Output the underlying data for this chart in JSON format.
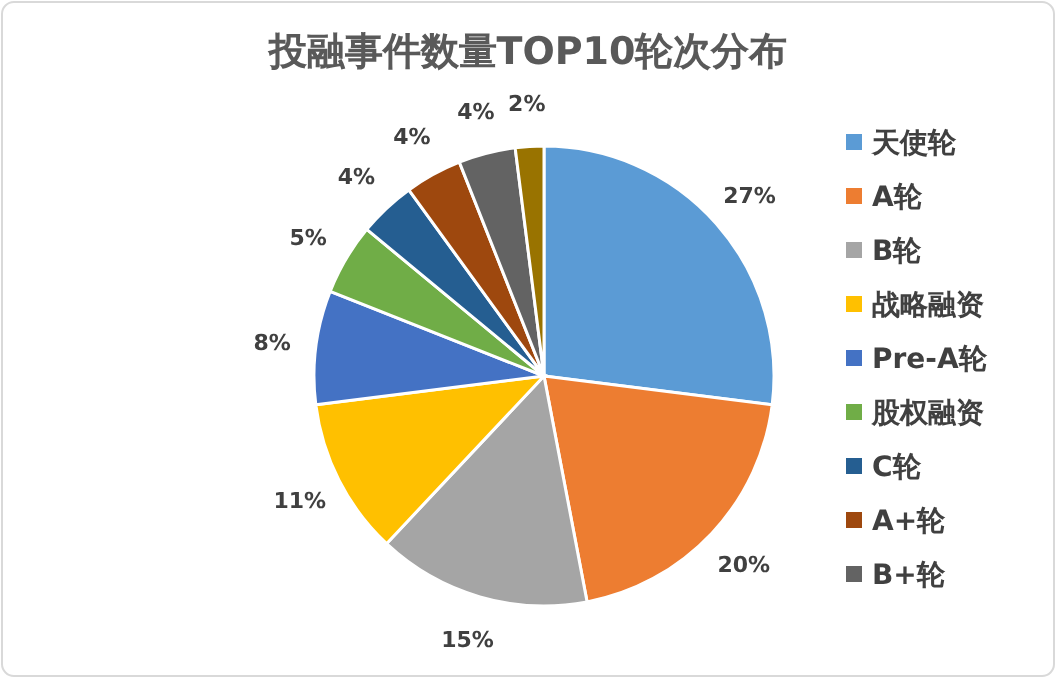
{
  "chart_data": {
    "type": "pie",
    "title": "投融事件数量TOP10轮次分布",
    "categories": [
      "天使轮",
      "A轮",
      "B轮",
      "战略融资",
      "Pre-A轮",
      "股权融资",
      "C轮",
      "A+轮",
      "B+轮",
      null
    ],
    "values": [
      27,
      20,
      15,
      11,
      8,
      5,
      4,
      4,
      4,
      2
    ],
    "value_labels": [
      "27%",
      "20%",
      "15%",
      "11%",
      "8%",
      "5%",
      "4%",
      "4%",
      "4%",
      "2%"
    ],
    "colors": [
      "#5b9bd5",
      "#ed7d31",
      "#a5a5a5",
      "#ffc000",
      "#4472c4",
      "#70ad47",
      "#255e91",
      "#9e480e",
      "#636363",
      "#997300"
    ],
    "legend": "right"
  }
}
